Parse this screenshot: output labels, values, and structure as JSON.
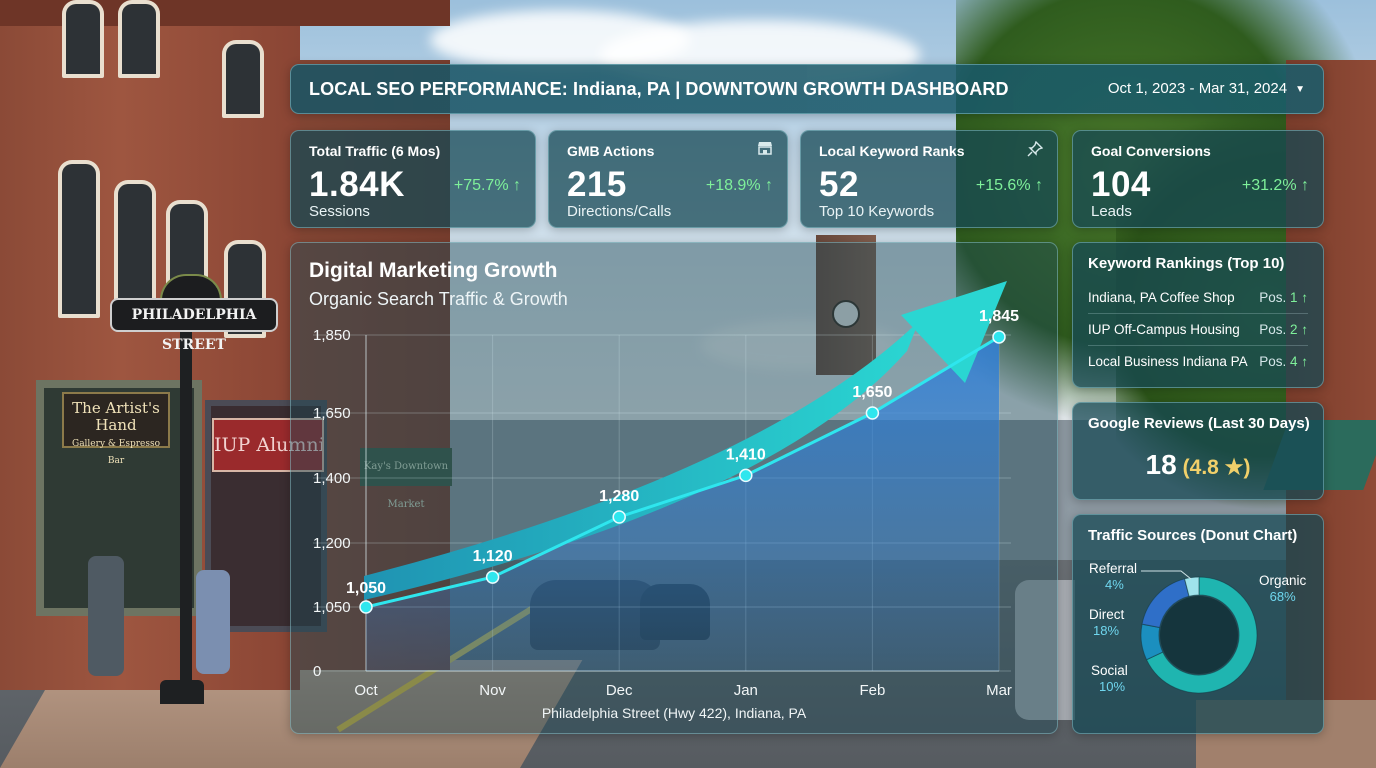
{
  "street_scene": {
    "street_sign": "PHILADELPHIA STREET",
    "shop_sign_1": "The Artist's Hand",
    "shop_sign_1_sub": "Gallery & Espresso Bar",
    "shop_sign_2": "IUP Alumni Store",
    "shop_sign_3": "Kay's Downtown Market"
  },
  "header": {
    "title": "LOCAL SEO PERFORMANCE: Indiana, PA | DOWNTOWN GROWTH DASHBOARD",
    "date_range": "Oct 1, 2023 - Mar 31, 2024",
    "date_icon": "chevron-down-icon"
  },
  "kpis": [
    {
      "label": "Total Traffic (6 Mos)",
      "value": "1.84K",
      "change": "+75.7% ↑",
      "sub": "Sessions",
      "icon": ""
    },
    {
      "label": "GMB Actions",
      "value": "215",
      "change": "+18.9% ↑",
      "sub": "Directions/Calls",
      "icon": "storefront-icon"
    },
    {
      "label": "Local Keyword Ranks",
      "value": "52",
      "change": "+15.6% ↑",
      "sub": "Top 10 Keywords",
      "icon": "pin-icon"
    },
    {
      "label": "Goal Conversions",
      "value": "104",
      "change": "+31.2% ↑",
      "sub": "Leads",
      "icon": ""
    }
  ],
  "chart_panel": {
    "title": "Digital Marketing Growth",
    "subtitle": "Organic Search Traffic & Growth",
    "caption": "Philadelphia Street (Hwy 422), Indiana, PA"
  },
  "chart_data": {
    "type": "line",
    "title": "Digital Marketing Growth",
    "subtitle": "Organic Search Traffic & Growth",
    "categories": [
      "Oct",
      "Nov",
      "Dec",
      "Jan",
      "Feb",
      "Mar"
    ],
    "series": [
      {
        "values": [
          1050,
          1120,
          1280,
          1410,
          1650,
          1845
        ]
      }
    ],
    "data_labels": [
      "1,050",
      "1,120",
      "1,280",
      "1,410",
      "1,650",
      "1,845"
    ],
    "y_ticks": [
      "0",
      "1,050",
      "1,200",
      "1,400",
      "1,650",
      "1,850"
    ],
    "y_tick_values": [
      0,
      1050,
      1200,
      1400,
      1650,
      1850
    ],
    "grid": true,
    "area_fill": true,
    "trend_arrow": true,
    "colors": {
      "line": "#2ee6ee",
      "area": "#2f7fd8",
      "arrow": "#22b9c9"
    }
  },
  "keyword_rankings": {
    "title": "Keyword Rankings (Top 10)",
    "rows": [
      {
        "keyword": "Indiana, PA Coffee Shop",
        "pos_label": "Pos.",
        "pos": "1 ↑"
      },
      {
        "keyword": "IUP Off-Campus Housing",
        "pos_label": "Pos.",
        "pos": "2 ↑"
      },
      {
        "keyword": "Local Business Indiana PA",
        "pos_label": "Pos.",
        "pos": "4 ↑"
      }
    ]
  },
  "google_reviews": {
    "title": "Google Reviews (Last 30 Days)",
    "count": "18",
    "rating": "(4.8 ★)"
  },
  "traffic_sources": {
    "title": "Traffic Sources (Donut Chart)",
    "slices": [
      {
        "name": "Organic",
        "pct": "68%",
        "value": 68,
        "color": "#1fb5b0"
      },
      {
        "name": "Social",
        "pct": "10%",
        "value": 10,
        "color": "#1b8fbf"
      },
      {
        "name": "Direct",
        "pct": "18%",
        "value": 18,
        "color": "#2f6fc8"
      },
      {
        "name": "Referral",
        "pct": "4%",
        "value": 4,
        "color": "#9fe3ec"
      }
    ]
  },
  "colors": {
    "positive": "#7ef09a",
    "rating_gold": "#f1d06a",
    "panel": "#164854"
  }
}
